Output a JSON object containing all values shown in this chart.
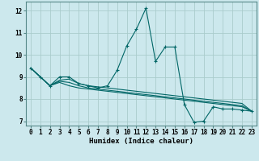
{
  "xlabel": "Humidex (Indice chaleur)",
  "xlim": [
    -0.5,
    23.5
  ],
  "ylim": [
    6.8,
    12.4
  ],
  "bg_color": "#cce8ed",
  "grid_color": "#aacccc",
  "line_color": "#006666",
  "lines": [
    [
      9.4,
      9.0,
      8.6,
      9.0,
      9.0,
      8.7,
      8.6,
      8.5,
      8.6,
      9.3,
      10.4,
      11.15,
      12.1,
      9.7,
      10.35,
      10.35,
      7.75,
      6.95,
      7.0,
      7.65,
      7.55,
      7.55,
      7.5,
      7.45
    ],
    [
      9.4,
      9.0,
      8.6,
      8.8,
      8.75,
      8.6,
      8.5,
      8.45,
      8.4,
      8.35,
      8.3,
      8.25,
      8.2,
      8.15,
      8.1,
      8.05,
      8.0,
      7.95,
      7.9,
      7.85,
      7.8,
      7.75,
      7.7,
      7.45
    ],
    [
      9.4,
      9.0,
      8.6,
      8.75,
      8.6,
      8.5,
      8.45,
      8.4,
      8.35,
      8.3,
      8.25,
      8.2,
      8.15,
      8.1,
      8.05,
      8.0,
      7.95,
      7.9,
      7.85,
      7.8,
      7.75,
      7.7,
      7.65,
      7.45
    ],
    [
      9.4,
      9.0,
      8.6,
      8.85,
      8.9,
      8.7,
      8.6,
      8.55,
      8.5,
      8.45,
      8.4,
      8.35,
      8.3,
      8.25,
      8.2,
      8.15,
      8.1,
      8.05,
      8.0,
      7.95,
      7.9,
      7.85,
      7.8,
      7.45
    ]
  ],
  "xtick_labels": [
    "0",
    "1",
    "2",
    "3",
    "4",
    "5",
    "6",
    "7",
    "8",
    "9",
    "10",
    "11",
    "12",
    "13",
    "14",
    "15",
    "16",
    "17",
    "18",
    "19",
    "20",
    "21",
    "22",
    "23"
  ],
  "ytick_values": [
    7,
    8,
    9,
    10,
    11,
    12
  ],
  "xlabel_fontsize": 6.5,
  "tick_fontsize": 5.5
}
